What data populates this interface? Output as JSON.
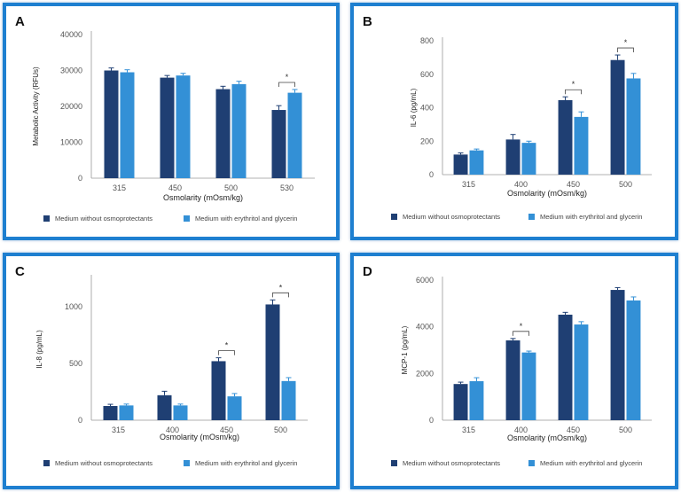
{
  "colors": {
    "series_dark": "#1f3f73",
    "series_light": "#3390d6",
    "frame": "#1e7fd0",
    "axis": "#999999"
  },
  "chart_data": [
    {
      "panel": "A",
      "type": "bar",
      "categories": [
        "315",
        "450",
        "500",
        "530"
      ],
      "xlabel": "Osmolarity (mOsm/kg)",
      "ylabel": "Metabolic Activity (RFUs)",
      "ylim": [
        0,
        40000
      ],
      "yticks": [
        "0",
        "10000",
        "20000",
        "30000",
        "40000"
      ],
      "ytick_values": [
        0,
        10000,
        20000,
        30000,
        40000
      ],
      "series": [
        {
          "name": "Medium without osmoprotectants",
          "values": [
            30000,
            28000,
            24800,
            19000
          ],
          "errors": [
            700,
            600,
            800,
            1200
          ]
        },
        {
          "name": "Medium with erythritol and glycerin",
          "values": [
            29500,
            28600,
            26200,
            23800
          ],
          "errors": [
            700,
            600,
            800,
            900
          ]
        }
      ],
      "significance": [
        {
          "category_index": 3,
          "label": "*"
        }
      ]
    },
    {
      "panel": "B",
      "type": "bar",
      "categories": [
        "315",
        "400",
        "450",
        "500"
      ],
      "xlabel": "Osmolarity (mOsm/kg)",
      "ylabel": "IL-6 (pg/mL)",
      "ylim": [
        0,
        800
      ],
      "yticks": [
        "0",
        "200",
        "400",
        "600",
        "800"
      ],
      "ytick_values": [
        0,
        200,
        400,
        600,
        800
      ],
      "series": [
        {
          "name": "Medium without osmoprotectants",
          "values": [
            120,
            210,
            445,
            685
          ],
          "errors": [
            10,
            30,
            20,
            30
          ]
        },
        {
          "name": "Medium with erythritol and glycerin",
          "values": [
            145,
            190,
            345,
            575
          ],
          "errors": [
            8,
            10,
            30,
            30
          ]
        }
      ],
      "significance": [
        {
          "category_index": 2,
          "label": "*"
        },
        {
          "category_index": 3,
          "label": "*"
        }
      ]
    },
    {
      "panel": "C",
      "type": "bar",
      "categories": [
        "315",
        "400",
        "450",
        "500"
      ],
      "xlabel": "Osmolarity (mOsm/kg)",
      "ylabel": "IL-8 (pg/mL)",
      "ylim": [
        0,
        1250
      ],
      "yticks": [
        "0",
        "500",
        "1000"
      ],
      "ytick_values": [
        0,
        500,
        1000
      ],
      "series": [
        {
          "name": "Medium without osmoprotectants",
          "values": [
            125,
            220,
            520,
            1020
          ],
          "errors": [
            15,
            35,
            30,
            40
          ]
        },
        {
          "name": "Medium with erythritol and glycerin",
          "values": [
            130,
            130,
            210,
            345
          ],
          "errors": [
            12,
            12,
            25,
            30
          ]
        }
      ],
      "significance": [
        {
          "category_index": 2,
          "label": "*"
        },
        {
          "category_index": 3,
          "label": "*"
        }
      ]
    },
    {
      "panel": "D",
      "type": "bar",
      "categories": [
        "315",
        "400",
        "450",
        "500"
      ],
      "xlabel": "Osmolarity (mOsm/kg)",
      "ylabel": "MCP-1 (pg/mL)",
      "ylim": [
        0,
        6000
      ],
      "yticks": [
        "0",
        "2000",
        "4000",
        "6000"
      ],
      "ytick_values": [
        0,
        2000,
        4000,
        6000
      ],
      "series": [
        {
          "name": "Medium without osmoprotectants",
          "values": [
            1550,
            3420,
            4520,
            5580
          ],
          "errors": [
            80,
            80,
            100,
            100
          ]
        },
        {
          "name": "Medium with erythritol and glycerin",
          "values": [
            1670,
            2900,
            4100,
            5130
          ],
          "errors": [
            150,
            60,
            120,
            150
          ]
        }
      ],
      "significance": [
        {
          "category_index": 1,
          "label": "*"
        }
      ]
    }
  ]
}
